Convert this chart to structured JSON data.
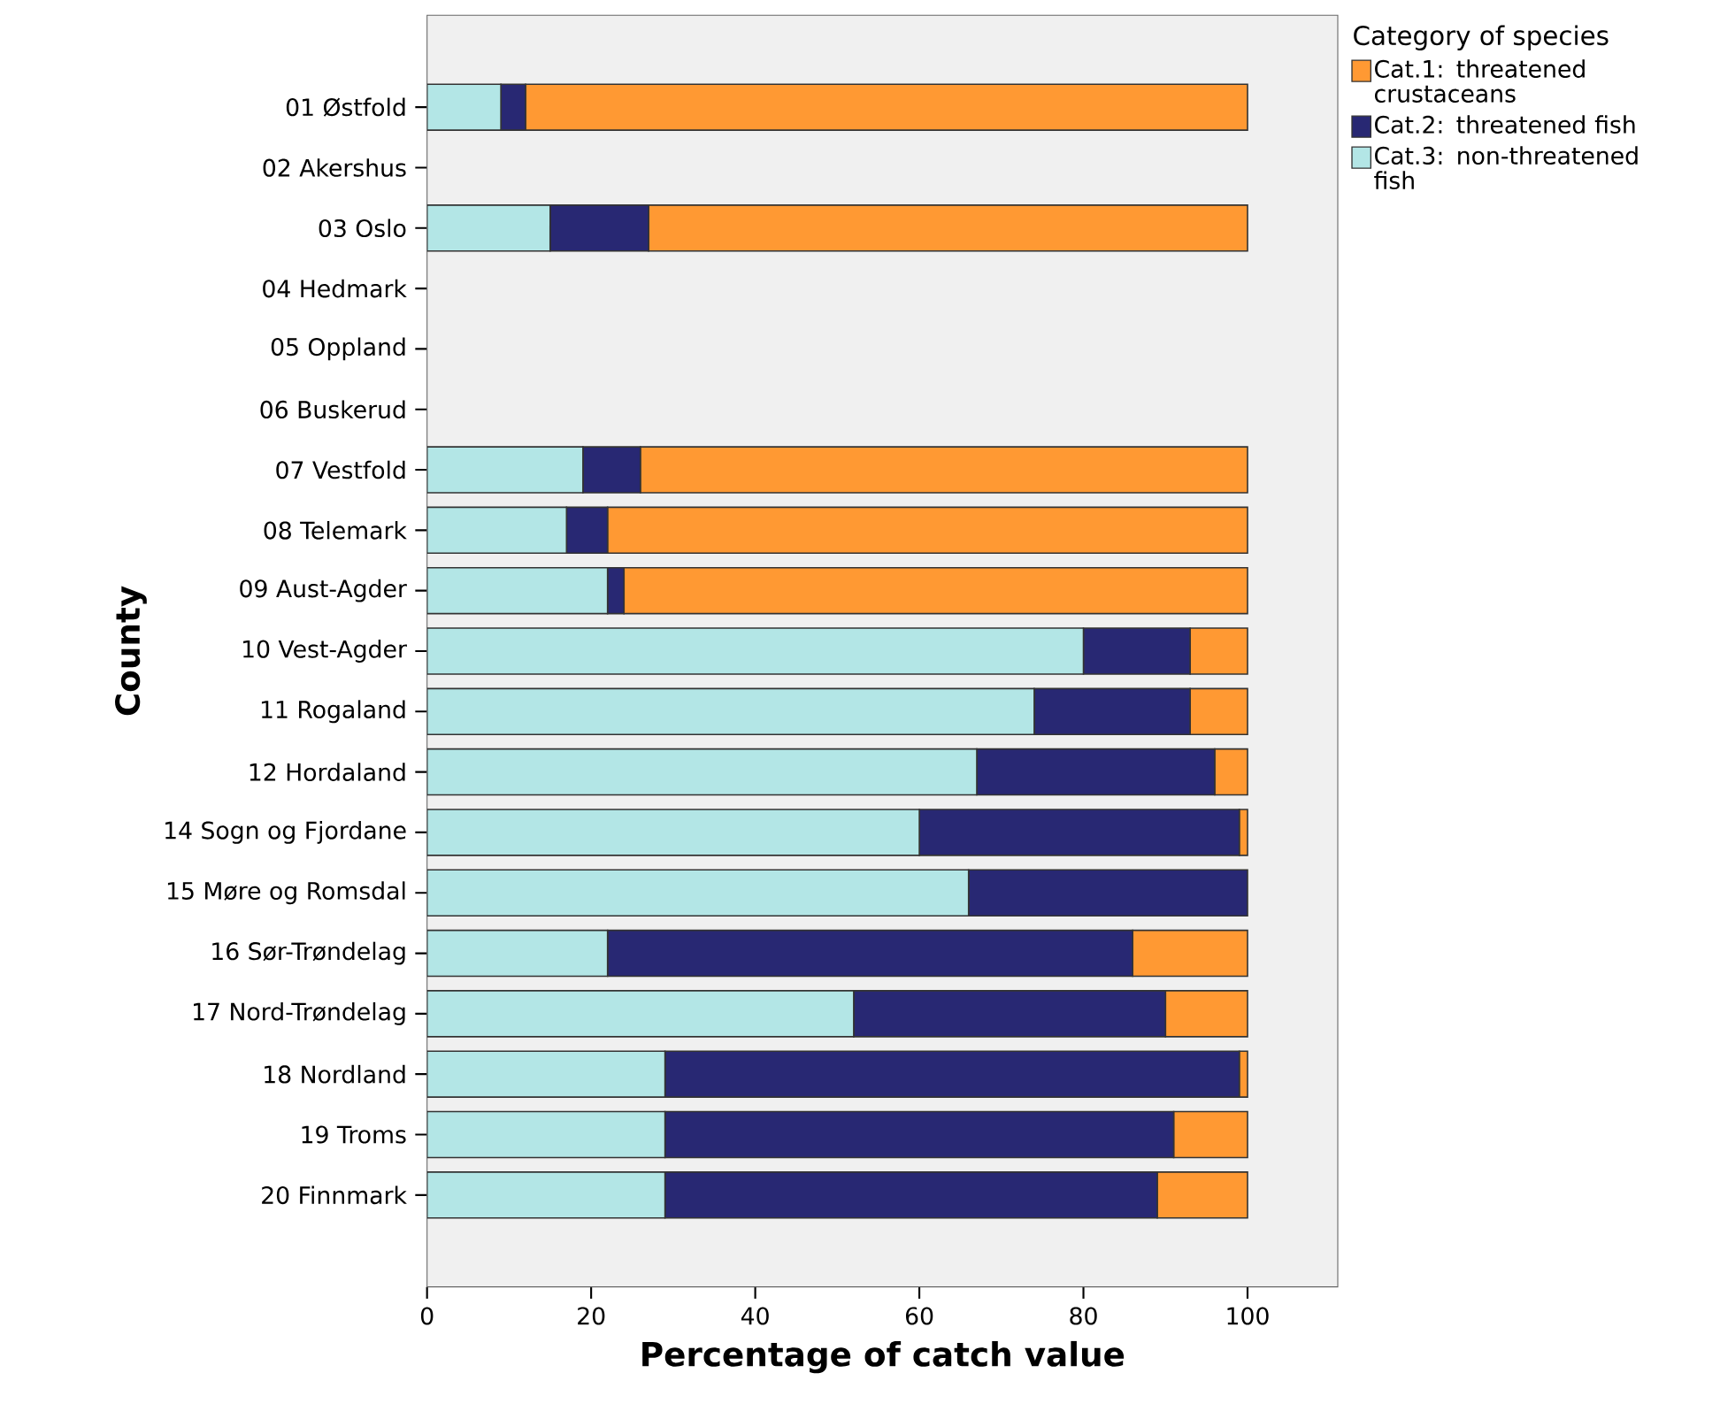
{
  "chart_data": {
    "type": "bar",
    "orientation": "horizontal",
    "stacked": true,
    "xlabel": "Percentage of catch value",
    "ylabel": "County",
    "legend_title": "Category of species",
    "legend": "right",
    "categories": [
      "01 Østfold",
      "02 Akershus",
      "03 Oslo",
      "04 Hedmark",
      "05 Oppland",
      "06 Buskerud",
      "07 Vestfold",
      "08 Telemark",
      "09 Aust-Agder",
      "10 Vest-Agder",
      "11 Rogaland",
      "12 Hordaland",
      "14 Sogn og Fjordane",
      "15 Møre og Romsdal",
      "16 Sør-Trøndelag",
      "17 Nord-Trøndelag",
      "18 Nordland",
      "19 Troms",
      "20 Finnmark"
    ],
    "series": [
      {
        "name": "Cat.3: non-threatened fish",
        "color": "#b3e6e6",
        "values": [
          9,
          null,
          15,
          null,
          null,
          null,
          19,
          17,
          22,
          80,
          74,
          67,
          60,
          66,
          22,
          52,
          29,
          29,
          29
        ]
      },
      {
        "name": "Cat.2: threatened fish",
        "color": "#282873",
        "values": [
          3,
          null,
          12,
          null,
          null,
          null,
          7,
          5,
          2,
          13,
          19,
          29,
          39,
          34,
          64,
          38,
          70,
          62,
          60
        ]
      },
      {
        "name": "Cat.1: threatened crustaceans",
        "color": "#ff9933",
        "values": [
          88,
          null,
          73,
          null,
          null,
          null,
          74,
          78,
          76,
          7,
          7,
          4,
          1,
          0,
          14,
          10,
          1,
          9,
          11
        ]
      }
    ],
    "xlim": [
      0,
      111
    ],
    "xticks": [
      0,
      20,
      40,
      60,
      80,
      100
    ]
  }
}
